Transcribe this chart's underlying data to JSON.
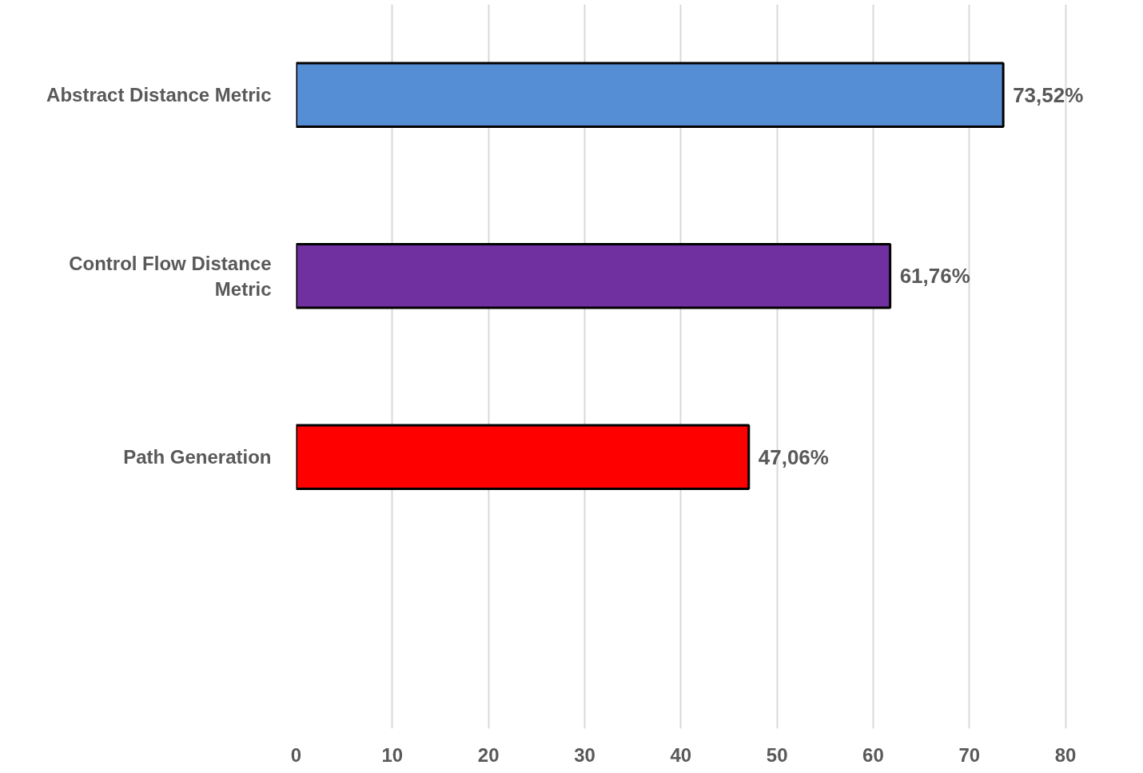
{
  "chart_data": {
    "type": "bar",
    "orientation": "horizontal",
    "categories": [
      "Abstract Distance Metric",
      "Control Flow Distance Metric",
      "Path Generation",
      null
    ],
    "values": [
      73.52,
      61.76,
      47.06,
      null
    ],
    "colors": [
      "#558ed5",
      "#7030a0",
      "#ff0000",
      null
    ],
    "value_labels": [
      "73,52%",
      "61,76%",
      "47,06%",
      null
    ],
    "xlim": [
      0,
      80
    ],
    "xticks": [
      0,
      10,
      20,
      30,
      40,
      50,
      60,
      70,
      80
    ],
    "grid": "x"
  }
}
